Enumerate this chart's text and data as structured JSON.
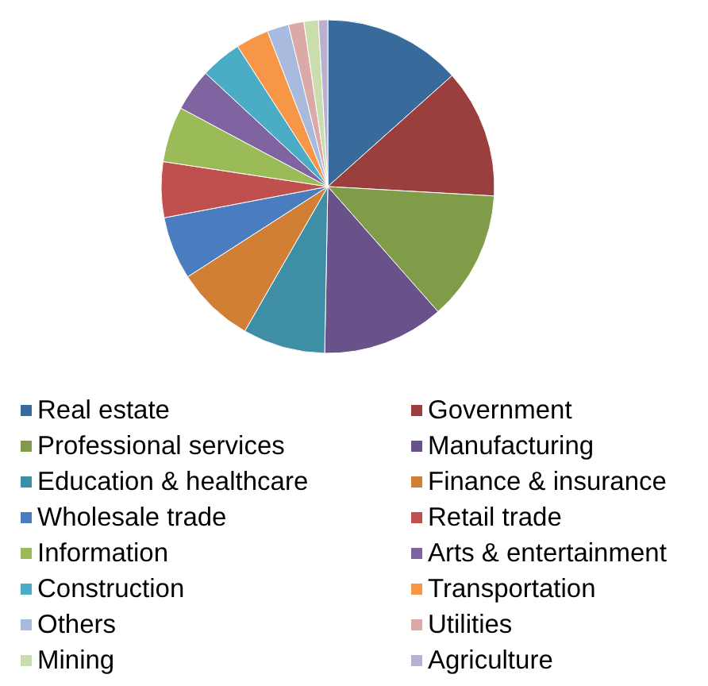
{
  "chart_data": {
    "type": "pie",
    "categories": [
      "Real estate",
      "Government",
      "Professional services",
      "Manufacturing",
      "Education & healthcare",
      "Finance & insurance",
      "Wholesale trade",
      "Retail trade",
      "Information",
      "Arts & entertainment",
      "Construction",
      "Transportation",
      "Others",
      "Utilities",
      "Mining",
      "Agriculture"
    ],
    "values": [
      13.4,
      12.5,
      12.6,
      11.8,
      8.0,
      7.6,
      6.1,
      5.4,
      5.4,
      4.1,
      4.0,
      3.2,
      2.1,
      1.5,
      1.4,
      0.9
    ],
    "colors": [
      "#386a9c",
      "#9a3f3e",
      "#809c48",
      "#69518a",
      "#3e8ea5",
      "#d17f35",
      "#4a7dc0",
      "#c0504d",
      "#9bbb59",
      "#8064a2",
      "#4bacc6",
      "#f79646",
      "#a9badf",
      "#daa9a8",
      "#caddad",
      "#b9b0d1"
    ],
    "legend": "bottom"
  }
}
